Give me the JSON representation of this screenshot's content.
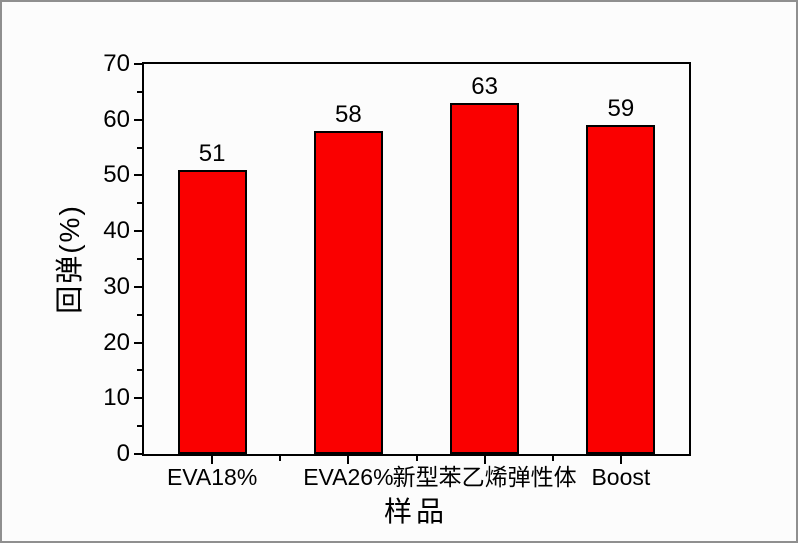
{
  "page": {
    "background_color": "#fcfcfc",
    "outer_border_color": "#8f8f8f"
  },
  "chart_data": {
    "type": "bar",
    "title": "",
    "categories": [
      "EVA18%",
      "EVA26%",
      "新型苯乙烯弹性体",
      "Boost"
    ],
    "values": [
      51,
      58,
      63,
      59
    ],
    "value_labels": [
      "51",
      "58",
      "63",
      "59"
    ],
    "xlabel": "样品",
    "ylabel": "回弹(%)",
    "ylim": [
      0,
      70
    ],
    "yticks": [
      0,
      10,
      20,
      30,
      40,
      50,
      60,
      70
    ],
    "y_minor_ticks": [
      5,
      15,
      25,
      35,
      45,
      55,
      65
    ],
    "bar_color": "#fa0000",
    "bar_border_color": "#000000",
    "axis_color": "#000000",
    "grid": false,
    "legend": "none"
  }
}
